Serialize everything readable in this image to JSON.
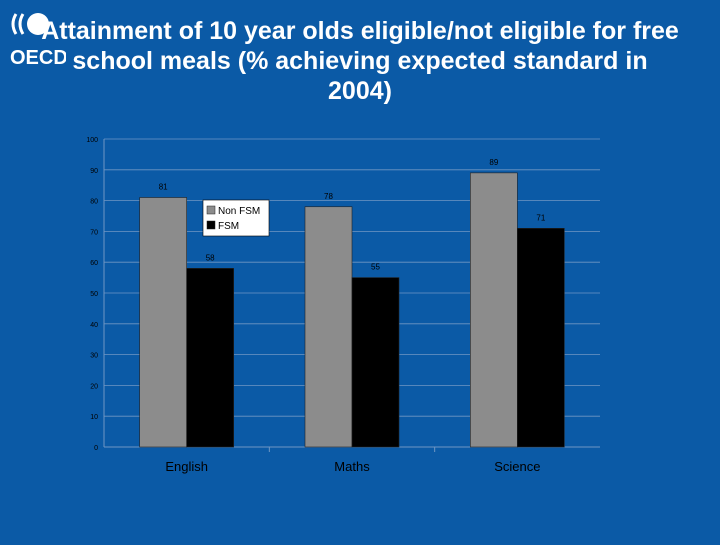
{
  "slide": {
    "title": "Attainment of 10 year olds eligible/not eligible for free school meals (% achieving expected standard in 2004)",
    "logo_text": "OECD"
  },
  "colors": {
    "background": "#0b5aa6",
    "plot_bg": "#0b5aa6",
    "non_fsm": "#8c8c8c",
    "fsm": "#000000",
    "text": "#ffffff"
  },
  "chart_data": {
    "type": "bar",
    "title": "",
    "xlabel": "",
    "ylabel": "",
    "categories": [
      "English",
      "Maths",
      "Science"
    ],
    "series": [
      {
        "name": "Non FSM",
        "values": [
          81,
          78,
          89
        ]
      },
      {
        "name": "FSM",
        "values": [
          58,
          55,
          71
        ]
      }
    ],
    "ylim": [
      0,
      100
    ],
    "yticks": [
      0,
      10,
      20,
      30,
      40,
      50,
      60,
      70,
      80,
      90,
      100
    ],
    "grid": true,
    "legend_position": "inside-top-left",
    "data_labels": true
  }
}
